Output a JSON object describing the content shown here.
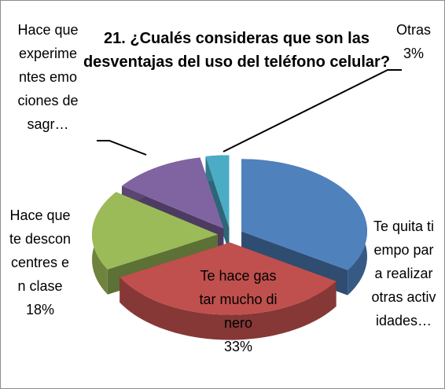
{
  "chart_data": {
    "type": "pie3d",
    "title": "21. ¿Cualés consideras que son las desventajas del uso del teléfono celular?",
    "categories": [
      "Te quita tiempo para realizar otras actividades…",
      "Te hace gastar mucho dinero",
      "Hace que te desconcentres en clase",
      "Hace que experimentes emociones desagr…",
      "Otras"
    ],
    "values": [
      34,
      33,
      18,
      12,
      3
    ],
    "value_labels": [
      null,
      "33%",
      "18%",
      null,
      "3%"
    ],
    "colors": [
      "#4f81bd",
      "#c0504d",
      "#9bbb59",
      "#8064a2",
      "#4bacc6"
    ]
  }
}
